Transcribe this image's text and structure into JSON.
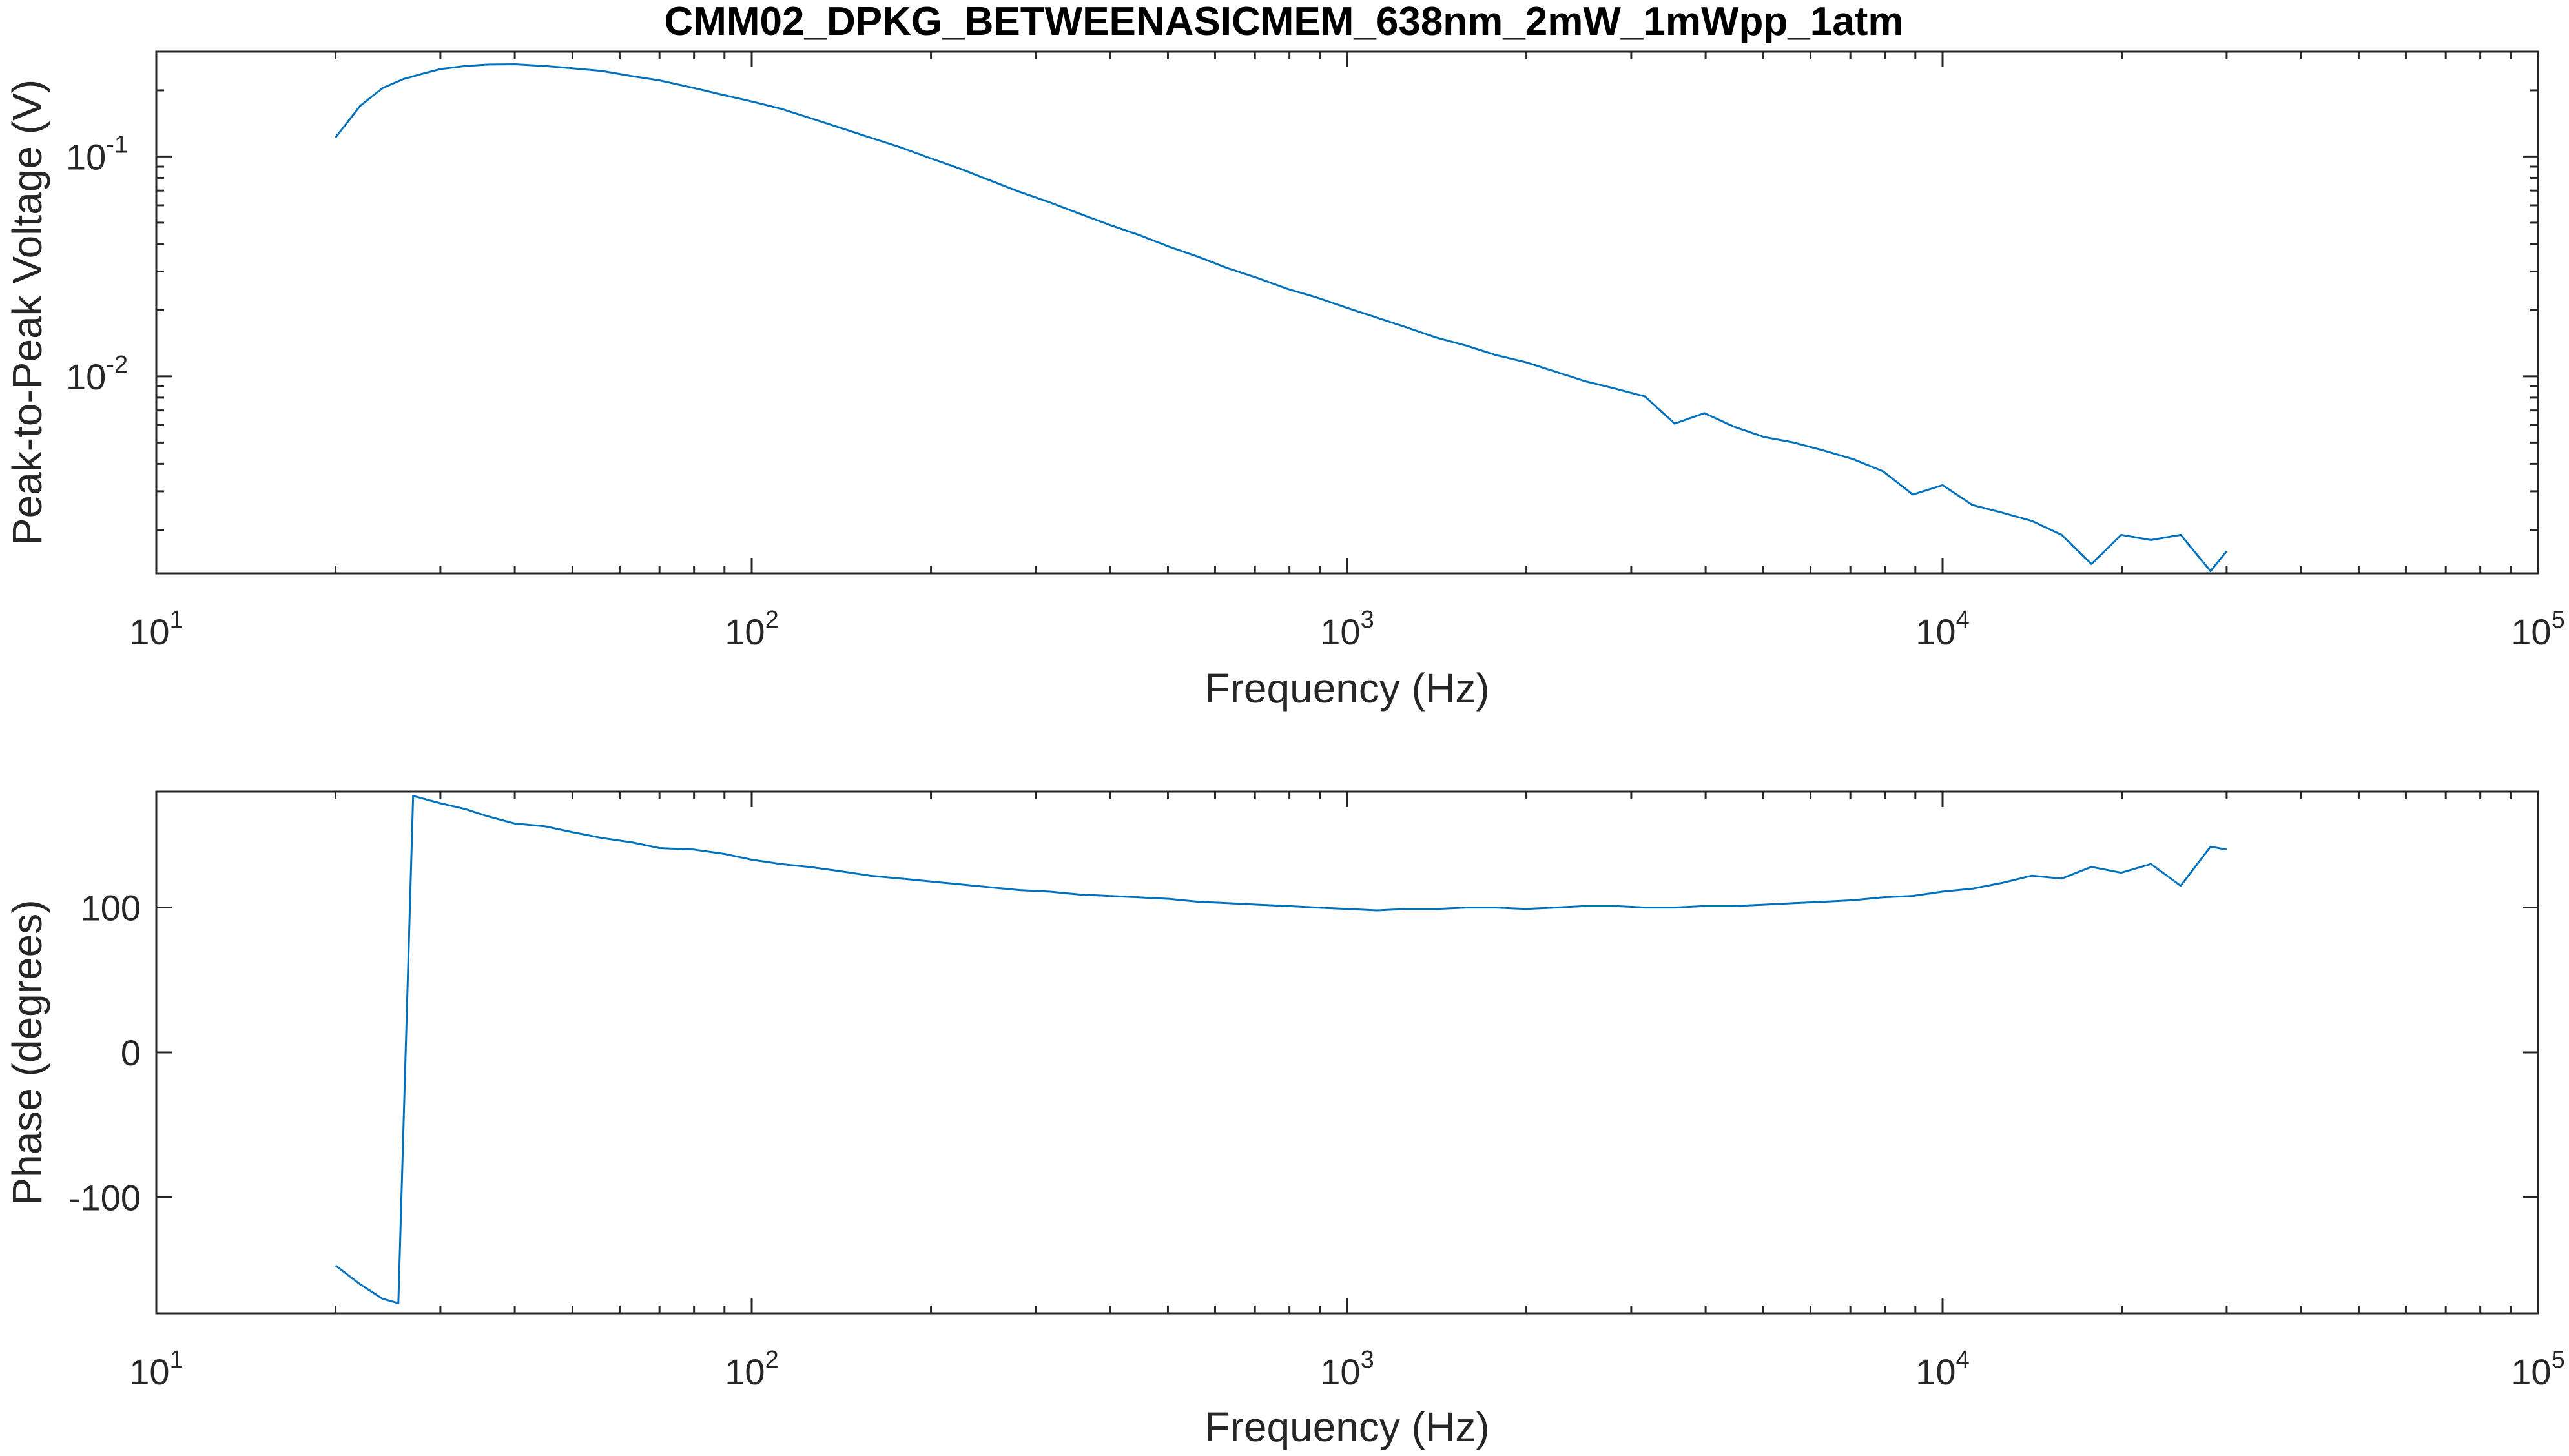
{
  "figure": {
    "title": "CMM02_DPKG_BETWEENASICMEM_638nm_2mW_1mWpp_1atm"
  },
  "chart_data": [
    {
      "type": "line",
      "xlabel": "Frequency (Hz)",
      "ylabel": "Peak-to-Peak Voltage (V)",
      "xscale": "log",
      "yscale": "log",
      "xlim": [
        10,
        100000
      ],
      "ylim": [
        0.00127,
        0.3
      ],
      "xticks": [
        {
          "value": 10,
          "base": "10",
          "exp": "1"
        },
        {
          "value": 100,
          "base": "10",
          "exp": "2"
        },
        {
          "value": 1000,
          "base": "10",
          "exp": "3"
        },
        {
          "value": 10000,
          "base": "10",
          "exp": "4"
        },
        {
          "value": 100000,
          "base": "10",
          "exp": "5"
        }
      ],
      "yticks": [
        {
          "value": 0.1,
          "base": "10",
          "exp": "-1"
        },
        {
          "value": 0.01,
          "base": "10",
          "exp": "-2"
        }
      ],
      "grid": false,
      "line_color": "#0072BD",
      "x": [
        20,
        22,
        24,
        26,
        28,
        30,
        33,
        36,
        40,
        45,
        50,
        56,
        63,
        70,
        80,
        90,
        100,
        112,
        125,
        141,
        158,
        178,
        200,
        224,
        251,
        282,
        316,
        355,
        398,
        447,
        501,
        562,
        631,
        708,
        794,
        891,
        1000,
        1122,
        1259,
        1413,
        1585,
        1778,
        1995,
        2239,
        2512,
        2818,
        3162,
        3548,
        3981,
        4467,
        5012,
        5623,
        6310,
        7079,
        7943,
        8913,
        10000,
        11220,
        12589,
        14125,
        15849,
        17783,
        19953,
        22387,
        25119,
        28184,
        30000
      ],
      "y": [
        0.122,
        0.17,
        0.205,
        0.225,
        0.238,
        0.25,
        0.258,
        0.262,
        0.263,
        0.258,
        0.252,
        0.245,
        0.232,
        0.222,
        0.205,
        0.19,
        0.178,
        0.165,
        0.15,
        0.135,
        0.122,
        0.11,
        0.098,
        0.088,
        0.078,
        0.069,
        0.062,
        0.055,
        0.049,
        0.044,
        0.039,
        0.035,
        0.031,
        0.028,
        0.025,
        0.0228,
        0.0205,
        0.0185,
        0.0167,
        0.015,
        0.0138,
        0.0125,
        0.0116,
        0.0105,
        0.0095,
        0.0088,
        0.0081,
        0.0061,
        0.0068,
        0.0059,
        0.0053,
        0.005,
        0.0046,
        0.0042,
        0.0037,
        0.0029,
        0.0032,
        0.0026,
        0.0024,
        0.0022,
        0.0019,
        0.0014,
        0.0019,
        0.0018,
        0.0019,
        0.0013,
        0.0016
      ]
    },
    {
      "type": "line",
      "xlabel": "Frequency (Hz)",
      "ylabel": "Phase (degrees)",
      "xscale": "log",
      "yscale": "linear",
      "xlim": [
        10,
        100000
      ],
      "ylim": [
        -180,
        180
      ],
      "xticks": [
        {
          "value": 10,
          "base": "10",
          "exp": "1"
        },
        {
          "value": 100,
          "base": "10",
          "exp": "2"
        },
        {
          "value": 1000,
          "base": "10",
          "exp": "3"
        },
        {
          "value": 10000,
          "base": "10",
          "exp": "4"
        },
        {
          "value": 100000,
          "base": "10",
          "exp": "5"
        }
      ],
      "yticks": [
        {
          "value": 100,
          "label": "100"
        },
        {
          "value": 0,
          "label": "0"
        },
        {
          "value": -100,
          "label": "-100"
        }
      ],
      "grid": false,
      "line_color": "#0072BD",
      "x": [
        20,
        22,
        24,
        25.5,
        27,
        30,
        33,
        36,
        40,
        45,
        50,
        56,
        63,
        70,
        80,
        90,
        100,
        112,
        125,
        141,
        158,
        178,
        200,
        224,
        251,
        282,
        316,
        355,
        398,
        447,
        501,
        562,
        631,
        708,
        794,
        891,
        1000,
        1122,
        1259,
        1413,
        1585,
        1778,
        1995,
        2239,
        2512,
        2818,
        3162,
        3548,
        3981,
        4467,
        5012,
        5623,
        6310,
        7079,
        7943,
        8913,
        10000,
        11220,
        12589,
        14125,
        15849,
        17783,
        19953,
        22387,
        25119,
        28184,
        30000
      ],
      "y": [
        -147,
        -160,
        -170,
        -173,
        177,
        172,
        168,
        163,
        158,
        156,
        152,
        148,
        145,
        141,
        140,
        137,
        133,
        130,
        128,
        125,
        122,
        120,
        118,
        116,
        114,
        112,
        111,
        109,
        108,
        107,
        106,
        104,
        103,
        102,
        101,
        100,
        99,
        98,
        99,
        99,
        100,
        100,
        99,
        100,
        101,
        101,
        100,
        100,
        101,
        101,
        102,
        103,
        104,
        105,
        107,
        108,
        111,
        113,
        117,
        122,
        120,
        128,
        124,
        130,
        115,
        142,
        140
      ]
    }
  ]
}
